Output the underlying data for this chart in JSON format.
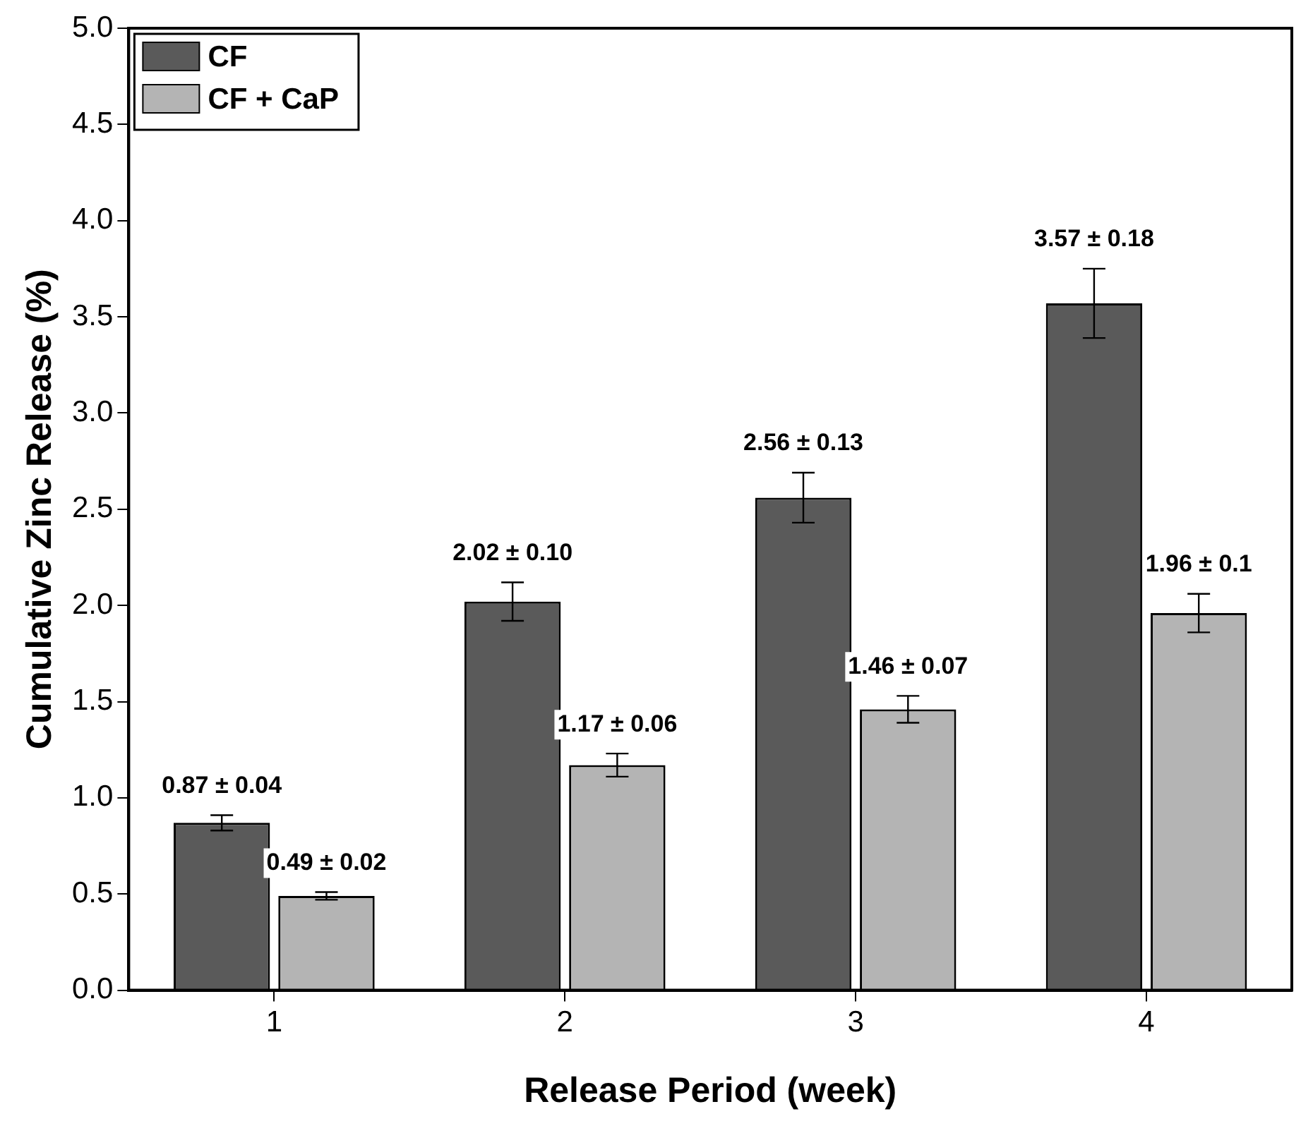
{
  "chart_data": {
    "type": "bar",
    "xlabel": "Release Period (week)",
    "ylabel": "Cumulative Zinc Release (%)",
    "categories": [
      "1",
      "2",
      "3",
      "4"
    ],
    "series": [
      {
        "name": "CF",
        "color": "#5a5a5a",
        "values": [
          0.87,
          2.02,
          2.56,
          3.57
        ],
        "errors": [
          0.04,
          0.1,
          0.13,
          0.18
        ],
        "value_labels": [
          "0.87 ± 0.04",
          "2.02 ± 0.10",
          "2.56 ± 0.13",
          "3.57 ± 0.18"
        ]
      },
      {
        "name": "CF + CaP",
        "color": "#b4b4b4",
        "values": [
          0.49,
          1.17,
          1.46,
          1.96
        ],
        "errors": [
          0.02,
          0.06,
          0.07,
          0.1
        ],
        "value_labels": [
          "0.49 ± 0.02",
          "1.17 ± 0.06",
          "1.46 ± 0.07",
          "1.96 ± 0.1"
        ]
      }
    ],
    "ylim": [
      0,
      5
    ],
    "yticks": [
      {
        "value": 0,
        "label": "0.0"
      },
      0.5,
      {
        "value": 1,
        "label": "1.0"
      },
      1.5,
      {
        "value": 2,
        "label": "2.0"
      },
      2.5,
      {
        "value": 3,
        "label": "3.0"
      },
      3.5,
      {
        "value": 4,
        "label": "4.0"
      },
      4.5,
      {
        "value": 5,
        "label": "5.0"
      }
    ],
    "grid": false,
    "legend": "top left"
  }
}
